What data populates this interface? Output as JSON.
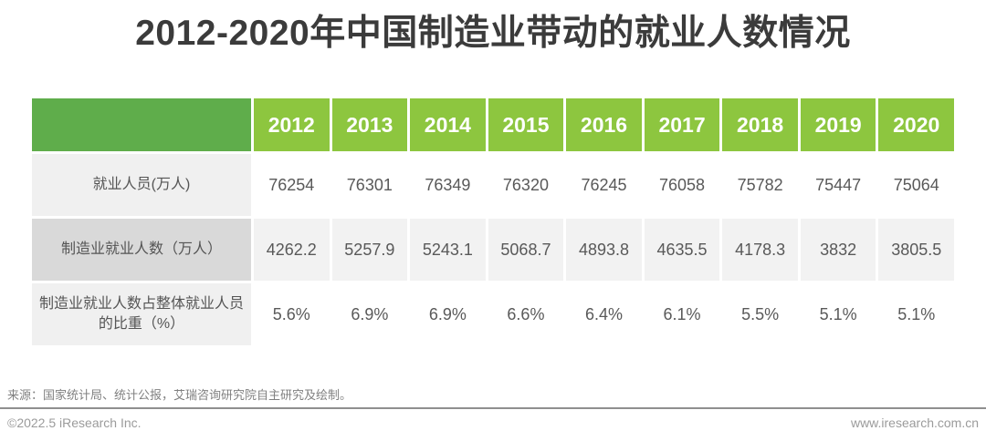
{
  "title": "2012-2020年中国制造业带动的就业人数情况",
  "table": {
    "years": [
      "2012",
      "2013",
      "2014",
      "2015",
      "2016",
      "2017",
      "2018",
      "2019",
      "2020"
    ],
    "rows": [
      {
        "label": "就业人员(万人)",
        "values": [
          "76254",
          "76301",
          "76349",
          "76320",
          "76245",
          "76058",
          "75782",
          "75447",
          "75064"
        ]
      },
      {
        "label": "制造业就业人数（万人）",
        "values": [
          "4262.2",
          "5257.9",
          "5243.1",
          "5068.7",
          "4893.8",
          "4635.5",
          "4178.3",
          "3832",
          "3805.5"
        ]
      },
      {
        "label": "制造业就业人数占整体就业人员的比重（%）",
        "values": [
          "5.6%",
          "6.9%",
          "6.9%",
          "6.6%",
          "6.4%",
          "6.1%",
          "5.5%",
          "5.1%",
          "5.1%"
        ]
      }
    ]
  },
  "source": "来源：国家统计局、统计公报，艾瑞咨询研究院自主研究及绘制。",
  "footer": {
    "copyright": "©2022.5 iResearch Inc.",
    "website": "www.iresearch.com.cn"
  },
  "colors": {
    "header_corner_green": "#5fad4b",
    "header_year_green": "#8dc63f",
    "label_light_gray": "#f0f0f0",
    "label_mid_gray": "#d9d9d9",
    "row_alt_gray": "#f2f2f2",
    "title_text": "#3b3b3b",
    "cell_text": "#595959"
  },
  "chart_data": {
    "type": "table",
    "title": "2012-2020年中国制造业带动的就业人数情况",
    "categories": [
      "2012",
      "2013",
      "2014",
      "2015",
      "2016",
      "2017",
      "2018",
      "2019",
      "2020"
    ],
    "series": [
      {
        "name": "就业人员(万人)",
        "values": [
          76254,
          76301,
          76349,
          76320,
          76245,
          76058,
          75782,
          75447,
          75064
        ]
      },
      {
        "name": "制造业就业人数（万人）",
        "values": [
          4262.2,
          5257.9,
          5243.1,
          5068.7,
          4893.8,
          4635.5,
          4178.3,
          3832,
          3805.5
        ]
      },
      {
        "name": "制造业就业人数占整体就业人员的比重（%）",
        "values": [
          5.6,
          6.9,
          6.9,
          6.6,
          6.4,
          6.1,
          5.5,
          5.1,
          5.1
        ]
      }
    ],
    "source_note": "来源：国家统计局、统计公报，艾瑞咨询研究院自主研究及绘制。"
  }
}
